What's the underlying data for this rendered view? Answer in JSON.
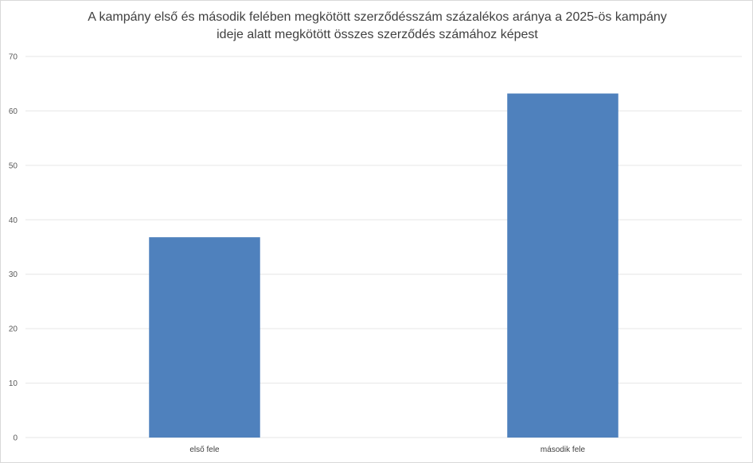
{
  "chart_data": {
    "type": "bar",
    "title": "A kampány első és második felében megkötött szerződésszám százalékos aránya a 2025-ös kampány ideje alatt megkötött összes szerződés számához képest",
    "title_lines": [
      "A kampány első és második felében megkötött szerződésszám százalékos aránya a 2025-ös kampány",
      "ideje alatt megkötött összes szerződés számához képest"
    ],
    "categories": [
      "első fele",
      "második fele"
    ],
    "values": [
      36.8,
      63.2
    ],
    "xlabel": "",
    "ylabel": "",
    "ylim": [
      0,
      70
    ],
    "yticks": [
      0,
      10,
      20,
      30,
      40,
      50,
      60,
      70
    ],
    "grid": true,
    "legend": "none",
    "bar_color": "#4f81bd",
    "grid_color": "#e6e6e6"
  }
}
